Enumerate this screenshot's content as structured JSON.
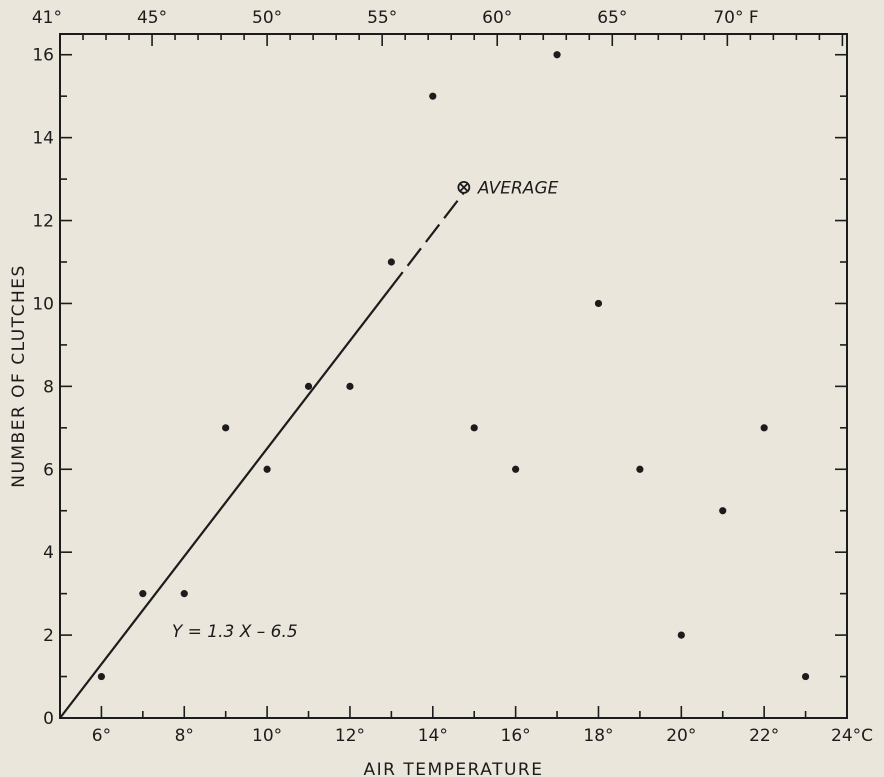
{
  "chart_data": {
    "type": "scatter",
    "xlabel": "AIR TEMPERATURE",
    "ylabel": "NUMBER OF CLUTCHES",
    "xlim": [
      5,
      24
    ],
    "ylim": [
      0,
      16.5
    ],
    "x_unit": "°C",
    "x_ticks": [
      6,
      8,
      10,
      12,
      14,
      16,
      18,
      20,
      22,
      24
    ],
    "x_tick_labels": [
      "6°",
      "8°",
      "10°",
      "12°",
      "14°",
      "16°",
      "18°",
      "20°",
      "22°",
      "24°C"
    ],
    "y_ticks": [
      0,
      2,
      4,
      6,
      8,
      10,
      12,
      14,
      16
    ],
    "y_tick_labels": [
      "0",
      "2",
      "4",
      "6",
      "8",
      "10",
      "12",
      "14",
      "16"
    ],
    "secondary_x_axis": {
      "unit": "°F",
      "ticks_f": [
        41,
        45,
        50,
        55,
        60,
        65,
        70
      ],
      "tick_labels": [
        "41°",
        "45°",
        "50°",
        "55°",
        "60°",
        "65°",
        "70° F"
      ]
    },
    "points": [
      {
        "x": 6,
        "y": 1
      },
      {
        "x": 7,
        "y": 3
      },
      {
        "x": 8,
        "y": 3
      },
      {
        "x": 9,
        "y": 7
      },
      {
        "x": 10,
        "y": 6
      },
      {
        "x": 11,
        "y": 8
      },
      {
        "x": 12,
        "y": 8
      },
      {
        "x": 13,
        "y": 11
      },
      {
        "x": 14,
        "y": 15
      },
      {
        "x": 15,
        "y": 7
      },
      {
        "x": 16,
        "y": 6
      },
      {
        "x": 17,
        "y": 16
      },
      {
        "x": 18,
        "y": 10
      },
      {
        "x": 19,
        "y": 6
      },
      {
        "x": 20,
        "y": 2
      },
      {
        "x": 21,
        "y": 5
      },
      {
        "x": 22,
        "y": 7
      },
      {
        "x": 23,
        "y": 1
      }
    ],
    "regression": {
      "equation": "Y = 1.3 X - 6.5",
      "slope": 1.3,
      "intercept": -6.5,
      "solid_from_x": 5,
      "solid_to_x": 12.95,
      "dashed_to_x": 14.75
    },
    "average_point": {
      "x": 14.75,
      "y": 12.8,
      "label": "AVERAGE"
    }
  },
  "colors": {
    "background": "#ebe6dc",
    "ink": "#1c1c1c"
  }
}
